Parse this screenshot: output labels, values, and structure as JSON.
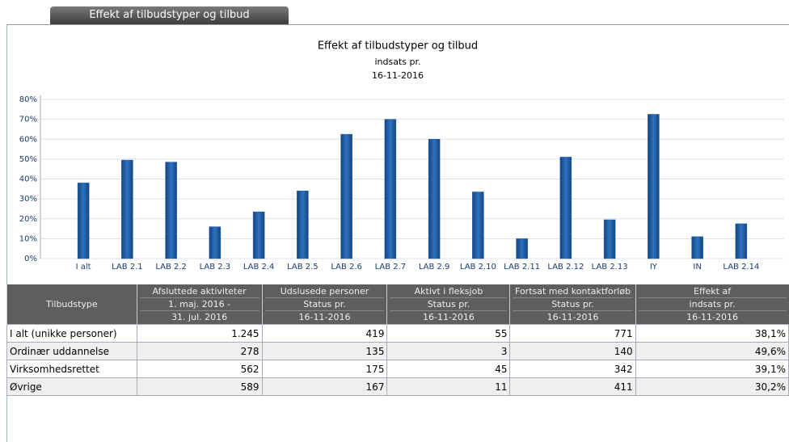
{
  "tab": "Effekt af tilbudstyper og tilbud",
  "chart_data": {
    "type": "bar",
    "title": "Effekt af tilbudstyper og tilbud",
    "subtitle": [
      "indsats pr.",
      "16-11-2016"
    ],
    "categories": [
      "I alt",
      "LAB 2.1",
      "LAB 2.2",
      "LAB 2.3",
      "LAB 2.4",
      "LAB 2.5",
      "LAB 2.6",
      "LAB 2.7",
      "LAB 2.9",
      "LAB 2.10",
      "LAB 2.11",
      "LAB 2.12",
      "LAB 2.13",
      "IY",
      "IN",
      "LAB 2.14"
    ],
    "values": [
      38,
      49.5,
      48.5,
      16,
      23.5,
      34,
      62.5,
      70,
      60,
      33.5,
      10,
      51,
      19.5,
      72.5,
      11,
      17.5
    ],
    "color": "#1f5fa8",
    "ylim": [
      0,
      80
    ],
    "yticks": [
      {
        "value": 0,
        "label": "0%"
      },
      {
        "value": 10,
        "label": "10%"
      },
      {
        "value": 20,
        "label": "20%"
      },
      {
        "value": 30,
        "label": "30%"
      },
      {
        "value": 40,
        "label": "40%"
      },
      {
        "value": 50,
        "label": "50%"
      },
      {
        "value": 60,
        "label": "60%"
      },
      {
        "value": 70,
        "label": "70%"
      },
      {
        "value": 80,
        "label": "80%"
      }
    ],
    "grid": true
  },
  "table": {
    "headers": [
      [
        "Tilbudstype"
      ],
      [
        "Afsluttede aktiviteter",
        "1. maj. 2016 -",
        "31. jul. 2016"
      ],
      [
        "Udslusede personer",
        "Status pr.",
        "16-11-2016"
      ],
      [
        "Aktivt i fleksjob",
        "Status pr.",
        "16-11-2016"
      ],
      [
        "Fortsat med kontaktforløb",
        "Status pr.",
        "16-11-2016"
      ],
      [
        "Effekt af",
        "indsats pr.",
        "16-11-2016"
      ]
    ],
    "rows": [
      [
        "I alt (unikke personer)",
        "1.245",
        "419",
        "55",
        "771",
        "38,1%"
      ],
      [
        "Ordinær uddannelse",
        "278",
        "135",
        "3",
        "140",
        "49,6%"
      ],
      [
        "Virksomhedsrettet",
        "562",
        "175",
        "45",
        "342",
        "39,1%"
      ],
      [
        "Øvrige",
        "589",
        "167",
        "11",
        "411",
        "30,2%"
      ]
    ]
  }
}
